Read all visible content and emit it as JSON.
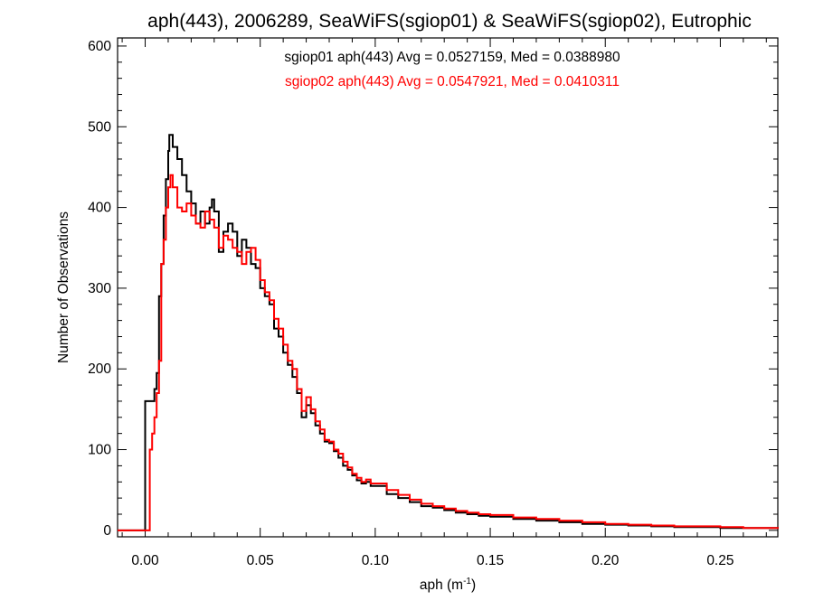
{
  "chart_data": {
    "type": "line",
    "title": "aph(443), 2006289, SeaWiFS(sgiop01) & SeaWiFS(sgiop02), Eutrophic",
    "xlabel": "aph (m",
    "xlabel_sup": "-1",
    "xlabel_suffix": ")",
    "ylabel": "Number of Observations",
    "xlim": [
      -0.012,
      0.275
    ],
    "ylim": [
      -8,
      610
    ],
    "xticks": [
      0.0,
      0.05,
      0.1,
      0.15,
      0.2,
      0.25
    ],
    "xtick_labels": [
      "0.00",
      "0.05",
      "0.10",
      "0.15",
      "0.20",
      "0.25"
    ],
    "yticks": [
      0,
      100,
      200,
      300,
      400,
      500,
      600
    ],
    "ytick_labels": [
      "0",
      "100",
      "200",
      "300",
      "400",
      "500",
      "600"
    ],
    "grid": false,
    "legend": "top-center",
    "series": [
      {
        "name": "sgiop01",
        "color": "#000000",
        "stats_text": "sgiop01 aph(443) Avg = 0.0527159, Med = 0.0388980",
        "points": [
          [
            -0.012,
            0
          ],
          [
            -0.001,
            0
          ],
          [
            0.0,
            160
          ],
          [
            0.004,
            175
          ],
          [
            0.005,
            195
          ],
          [
            0.006,
            290
          ],
          [
            0.007,
            330
          ],
          [
            0.008,
            390
          ],
          [
            0.009,
            435
          ],
          [
            0.01,
            470
          ],
          [
            0.0105,
            490
          ],
          [
            0.012,
            475
          ],
          [
            0.014,
            460
          ],
          [
            0.016,
            440
          ],
          [
            0.018,
            420
          ],
          [
            0.02,
            405
          ],
          [
            0.022,
            380
          ],
          [
            0.024,
            395
          ],
          [
            0.026,
            380
          ],
          [
            0.028,
            400
          ],
          [
            0.029,
            410
          ],
          [
            0.03,
            395
          ],
          [
            0.032,
            345
          ],
          [
            0.034,
            370
          ],
          [
            0.036,
            380
          ],
          [
            0.038,
            370
          ],
          [
            0.04,
            340
          ],
          [
            0.042,
            360
          ],
          [
            0.044,
            350
          ],
          [
            0.046,
            330
          ],
          [
            0.048,
            325
          ],
          [
            0.05,
            300
          ],
          [
            0.052,
            290
          ],
          [
            0.054,
            280
          ],
          [
            0.056,
            250
          ],
          [
            0.058,
            240
          ],
          [
            0.06,
            220
          ],
          [
            0.062,
            205
          ],
          [
            0.064,
            190
          ],
          [
            0.066,
            170
          ],
          [
            0.068,
            140
          ],
          [
            0.07,
            155
          ],
          [
            0.072,
            145
          ],
          [
            0.074,
            130
          ],
          [
            0.076,
            120
          ],
          [
            0.078,
            110
          ],
          [
            0.08,
            108
          ],
          [
            0.082,
            98
          ],
          [
            0.084,
            90
          ],
          [
            0.086,
            80
          ],
          [
            0.088,
            75
          ],
          [
            0.09,
            68
          ],
          [
            0.092,
            62
          ],
          [
            0.094,
            58
          ],
          [
            0.096,
            60
          ],
          [
            0.098,
            55
          ],
          [
            0.1,
            55
          ],
          [
            0.105,
            45
          ],
          [
            0.11,
            40
          ],
          [
            0.115,
            35
          ],
          [
            0.12,
            30
          ],
          [
            0.125,
            28
          ],
          [
            0.13,
            25
          ],
          [
            0.135,
            22
          ],
          [
            0.14,
            20
          ],
          [
            0.145,
            18
          ],
          [
            0.15,
            17
          ],
          [
            0.16,
            14
          ],
          [
            0.17,
            12
          ],
          [
            0.18,
            10
          ],
          [
            0.19,
            8
          ],
          [
            0.2,
            7
          ],
          [
            0.21,
            6
          ],
          [
            0.22,
            5
          ],
          [
            0.23,
            4
          ],
          [
            0.24,
            4
          ],
          [
            0.25,
            3
          ],
          [
            0.26,
            3
          ],
          [
            0.27,
            3
          ],
          [
            0.275,
            2
          ]
        ]
      },
      {
        "name": "sgiop02",
        "color": "#ff0000",
        "stats_text": "sgiop02 aph(443) Avg = 0.0547921, Med = 0.0410311",
        "points": [
          [
            -0.012,
            0
          ],
          [
            0.001,
            0
          ],
          [
            0.002,
            100
          ],
          [
            0.003,
            120
          ],
          [
            0.004,
            140
          ],
          [
            0.005,
            170
          ],
          [
            0.006,
            210
          ],
          [
            0.007,
            330
          ],
          [
            0.008,
            360
          ],
          [
            0.009,
            400
          ],
          [
            0.01,
            425
          ],
          [
            0.011,
            440
          ],
          [
            0.012,
            425
          ],
          [
            0.014,
            400
          ],
          [
            0.016,
            395
          ],
          [
            0.018,
            405
          ],
          [
            0.02,
            390
          ],
          [
            0.022,
            380
          ],
          [
            0.024,
            375
          ],
          [
            0.026,
            395
          ],
          [
            0.028,
            385
          ],
          [
            0.03,
            375
          ],
          [
            0.032,
            350
          ],
          [
            0.034,
            365
          ],
          [
            0.036,
            360
          ],
          [
            0.038,
            350
          ],
          [
            0.04,
            345
          ],
          [
            0.042,
            330
          ],
          [
            0.044,
            345
          ],
          [
            0.046,
            350
          ],
          [
            0.048,
            335
          ],
          [
            0.05,
            310
          ],
          [
            0.052,
            295
          ],
          [
            0.054,
            285
          ],
          [
            0.056,
            262
          ],
          [
            0.058,
            250
          ],
          [
            0.06,
            230
          ],
          [
            0.062,
            210
          ],
          [
            0.064,
            200
          ],
          [
            0.066,
            175
          ],
          [
            0.068,
            148
          ],
          [
            0.07,
            165
          ],
          [
            0.072,
            150
          ],
          [
            0.074,
            135
          ],
          [
            0.076,
            125
          ],
          [
            0.078,
            112
          ],
          [
            0.08,
            110
          ],
          [
            0.082,
            100
          ],
          [
            0.084,
            95
          ],
          [
            0.086,
            85
          ],
          [
            0.088,
            78
          ],
          [
            0.09,
            70
          ],
          [
            0.092,
            65
          ],
          [
            0.094,
            60
          ],
          [
            0.096,
            63
          ],
          [
            0.098,
            58
          ],
          [
            0.1,
            58
          ],
          [
            0.105,
            50
          ],
          [
            0.11,
            44
          ],
          [
            0.115,
            38
          ],
          [
            0.12,
            33
          ],
          [
            0.125,
            30
          ],
          [
            0.13,
            27
          ],
          [
            0.135,
            24
          ],
          [
            0.14,
            22
          ],
          [
            0.145,
            20
          ],
          [
            0.15,
            19
          ],
          [
            0.16,
            16
          ],
          [
            0.17,
            14
          ],
          [
            0.18,
            12
          ],
          [
            0.19,
            10
          ],
          [
            0.2,
            8
          ],
          [
            0.21,
            7
          ],
          [
            0.22,
            6
          ],
          [
            0.23,
            5
          ],
          [
            0.24,
            5
          ],
          [
            0.25,
            4
          ],
          [
            0.26,
            3
          ],
          [
            0.27,
            3
          ],
          [
            0.275,
            2
          ]
        ]
      }
    ]
  }
}
